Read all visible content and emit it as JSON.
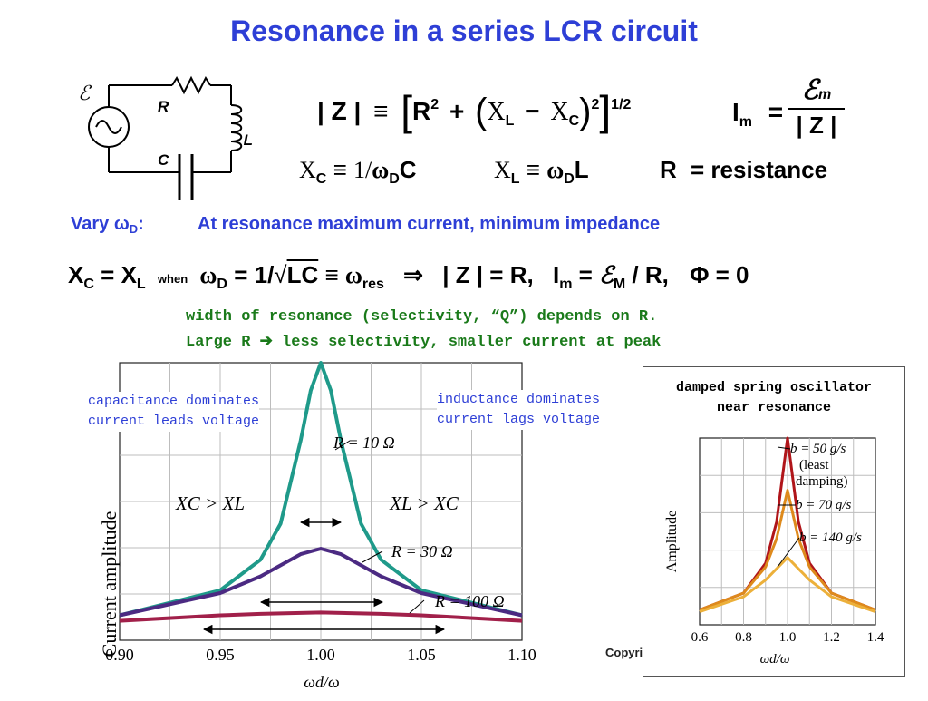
{
  "title": "Resonance in a series LCR circuit",
  "circuit": {
    "emf": "ℰ",
    "R": "R",
    "L": "L",
    "C": "C"
  },
  "eq1": {
    "lhs": "| Z |",
    "ident": "≡",
    "R": "R",
    "two": "2",
    "plus": "+",
    "XL": "X",
    "L": "L",
    "minus": "−",
    "XC": "X",
    "C": "C",
    "outer_sq": "2",
    "power": "1/2"
  },
  "eq_im": {
    "I": "I",
    "m": "m",
    "equals": "=",
    "num": "ℰ",
    "num_sub": "m",
    "den": "| Z |"
  },
  "eq2": {
    "xc": "X",
    "c": "C",
    "ident": "≡",
    "one_over": "1/",
    "omega": "ω",
    "D": "D",
    "C_end": "C"
  },
  "eq3": {
    "xl": "X",
    "l": "L",
    "ident": "≡",
    "omega": "ω",
    "D": "D",
    "L_end": "L"
  },
  "eq4": {
    "R": "R",
    "text": "= resistance"
  },
  "vary": {
    "label": "Vary ω",
    "sub": "D",
    "colon": ":",
    "text": "At resonance maximum current,  minimum impedance"
  },
  "res_line": {
    "xc": "X",
    "c_sub": "C",
    "eq": "=",
    "xl": "X",
    "l_sub": "L",
    "when": "when",
    "omega": "ω",
    "D": "D",
    "eq2": "= 1/",
    "lc": "LC",
    "ident": "≡",
    "omega_res": "ω",
    "res": "res",
    "arrow": "⇒",
    "zr": "| Z | = R,",
    "im": "I",
    "m": "m",
    "eq3": "=",
    "emf": "ℰ",
    "M": "M",
    "over_r": "/ R,",
    "phi": "Φ = 0"
  },
  "notes": [
    "width of resonance (selectivity, “Q”) depends on R.",
    "Large R ➔ less selectivity, smaller current at peak"
  ],
  "main_plot": {
    "left_label": [
      "capacitance dominates",
      "current leads voltage"
    ],
    "right_label": [
      "inductance dominates",
      "current lags voltage"
    ],
    "ylabel": "Current amplitude",
    "xlabel": "ωd/ω",
    "xc_gt_xl": "XC > XL",
    "xl_gt_xc": "XL > XC",
    "curve_labels": [
      "R = 10 Ω",
      "R = 30 Ω",
      "R = 100 Ω"
    ],
    "colors": {
      "R10": "#1f9a8a",
      "R30": "#4b2a82",
      "R100": "#a1204a"
    }
  },
  "side_plot": {
    "title": [
      "damped spring oscillator",
      "near resonance"
    ],
    "ylabel": "Amplitude",
    "xlabel": "ωd/ω",
    "curve_labels": [
      "b = 50 g/s",
      "(least",
      "damping)",
      "b = 70 g/s",
      "b = 140 g/s"
    ],
    "colors": {
      "b50": "#b0151a",
      "b70": "#de8a1c",
      "b140": "#ecb03a"
    }
  },
  "copyright": "Copyrig",
  "chart_data": [
    {
      "type": "line",
      "title": "",
      "xlabel": "ωd/ω",
      "ylabel": "Current amplitude",
      "xlim": [
        0.9,
        1.1
      ],
      "x_ticks": [
        "0.90",
        "0.95",
        "1.00",
        "1.05",
        "1.10"
      ],
      "grid": true,
      "series": [
        {
          "name": "R = 10 Ω",
          "x": [
            0.9,
            0.95,
            0.97,
            0.98,
            0.99,
            0.995,
            1.0,
            1.005,
            1.01,
            1.02,
            1.03,
            1.05,
            1.1
          ],
          "y": [
            0.09,
            0.18,
            0.29,
            0.42,
            0.72,
            0.9,
            1.0,
            0.9,
            0.72,
            0.42,
            0.29,
            0.18,
            0.09
          ]
        },
        {
          "name": "R = 30 Ω",
          "x": [
            0.9,
            0.95,
            0.97,
            0.98,
            0.99,
            1.0,
            1.01,
            1.02,
            1.03,
            1.05,
            1.1
          ],
          "y": [
            0.09,
            0.17,
            0.23,
            0.27,
            0.31,
            0.33,
            0.31,
            0.27,
            0.23,
            0.17,
            0.09
          ]
        },
        {
          "name": "R = 100 Ω",
          "x": [
            0.9,
            0.95,
            0.97,
            1.0,
            1.03,
            1.05,
            1.1
          ],
          "y": [
            0.07,
            0.09,
            0.095,
            0.1,
            0.095,
            0.09,
            0.07
          ]
        }
      ]
    },
    {
      "type": "line",
      "title": "damped spring oscillator near resonance",
      "xlabel": "ωd/ω",
      "ylabel": "Amplitude",
      "xlim": [
        0.6,
        1.4
      ],
      "x_ticks": [
        "0.6",
        "0.8",
        "1.0",
        "1.2",
        "1.4"
      ],
      "grid": true,
      "series": [
        {
          "name": "b = 50 g/s",
          "x": [
            0.6,
            0.8,
            0.9,
            0.95,
            1.0,
            1.05,
            1.1,
            1.2,
            1.4
          ],
          "y": [
            0.08,
            0.17,
            0.33,
            0.55,
            1.0,
            0.55,
            0.33,
            0.17,
            0.08
          ]
        },
        {
          "name": "b = 70 g/s",
          "x": [
            0.6,
            0.8,
            0.9,
            0.95,
            1.0,
            1.05,
            1.1,
            1.2,
            1.4
          ],
          "y": [
            0.08,
            0.17,
            0.31,
            0.46,
            0.72,
            0.46,
            0.31,
            0.17,
            0.08
          ]
        },
        {
          "name": "b = 140 g/s",
          "x": [
            0.6,
            0.8,
            0.9,
            0.95,
            1.0,
            1.05,
            1.1,
            1.2,
            1.4
          ],
          "y": [
            0.07,
            0.15,
            0.24,
            0.3,
            0.36,
            0.3,
            0.24,
            0.15,
            0.07
          ]
        }
      ]
    }
  ]
}
